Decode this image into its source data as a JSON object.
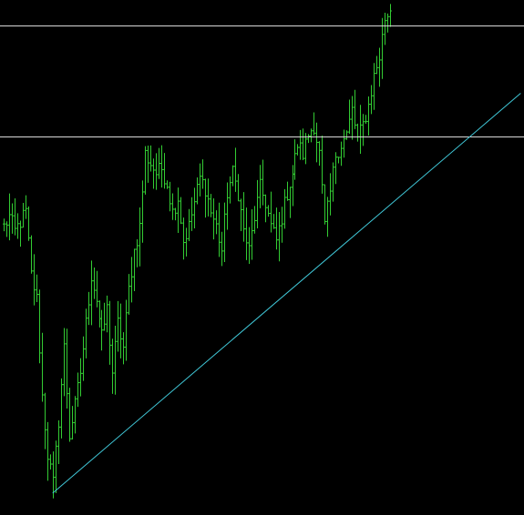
{
  "chart_data": {
    "type": "ohlc",
    "background": "#000000",
    "bar_color": "#33cc33",
    "horizontal_lines": [
      {
        "level": 0.965,
        "color": "#d8d8d8"
      },
      {
        "level": 0.735,
        "color": "#d8d8d8"
      }
    ],
    "trendline": {
      "color": "#40c8d8",
      "start": {
        "bar": 18,
        "value": 0.0
      },
      "end": {
        "bar": 190,
        "value": 0.825
      }
    },
    "ylim": [
      -0.03,
      1.01
    ],
    "bar_count": 190,
    "anchors": [
      [
        0,
        0.55
      ],
      [
        2,
        0.57
      ],
      [
        4,
        0.54
      ],
      [
        6,
        0.56
      ],
      [
        8,
        0.58
      ],
      [
        10,
        0.45
      ],
      [
        12,
        0.4
      ],
      [
        14,
        0.2
      ],
      [
        16,
        0.08
      ],
      [
        18,
        0.02
      ],
      [
        20,
        0.15
      ],
      [
        22,
        0.3
      ],
      [
        24,
        0.12
      ],
      [
        26,
        0.18
      ],
      [
        28,
        0.25
      ],
      [
        30,
        0.35
      ],
      [
        32,
        0.45
      ],
      [
        34,
        0.4
      ],
      [
        36,
        0.32
      ],
      [
        38,
        0.38
      ],
      [
        40,
        0.25
      ],
      [
        42,
        0.35
      ],
      [
        44,
        0.3
      ],
      [
        46,
        0.42
      ],
      [
        48,
        0.5
      ],
      [
        50,
        0.55
      ],
      [
        52,
        0.7
      ],
      [
        54,
        0.68
      ],
      [
        56,
        0.66
      ],
      [
        58,
        0.67
      ],
      [
        60,
        0.64
      ],
      [
        62,
        0.58
      ],
      [
        64,
        0.61
      ],
      [
        66,
        0.52
      ],
      [
        68,
        0.55
      ],
      [
        70,
        0.6
      ],
      [
        72,
        0.65
      ],
      [
        74,
        0.63
      ],
      [
        76,
        0.58
      ],
      [
        78,
        0.55
      ],
      [
        80,
        0.5
      ],
      [
        82,
        0.62
      ],
      [
        84,
        0.66
      ],
      [
        86,
        0.62
      ],
      [
        88,
        0.54
      ],
      [
        90,
        0.5
      ],
      [
        92,
        0.57
      ],
      [
        94,
        0.63
      ],
      [
        96,
        0.6
      ],
      [
        98,
        0.55
      ],
      [
        100,
        0.52
      ],
      [
        102,
        0.57
      ],
      [
        104,
        0.62
      ],
      [
        106,
        0.66
      ],
      [
        108,
        0.72
      ],
      [
        110,
        0.7
      ],
      [
        112,
        0.74
      ],
      [
        114,
        0.76
      ],
      [
        116,
        0.7
      ],
      [
        118,
        0.55
      ],
      [
        120,
        0.62
      ],
      [
        122,
        0.7
      ],
      [
        124,
        0.72
      ],
      [
        126,
        0.74
      ],
      [
        128,
        0.79
      ],
      [
        130,
        0.73
      ],
      [
        132,
        0.76
      ],
      [
        134,
        0.8
      ],
      [
        136,
        0.86
      ],
      [
        138,
        0.9
      ],
      [
        140,
        0.98
      ],
      [
        142,
        0.995
      ]
    ]
  }
}
